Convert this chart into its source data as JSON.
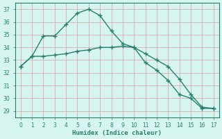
{
  "x": [
    0,
    1,
    2,
    3,
    4,
    5,
    6,
    7,
    8,
    9,
    10,
    11,
    12,
    13,
    14,
    15,
    16,
    17
  ],
  "line1": [
    32.5,
    33.3,
    34.9,
    34.9,
    35.8,
    36.7,
    37.0,
    36.5,
    35.3,
    34.3,
    34.0,
    32.8,
    32.2,
    31.4,
    30.3,
    30.0,
    29.2,
    29.2
  ],
  "line2": [
    32.5,
    33.3,
    33.3,
    33.4,
    33.5,
    33.7,
    33.8,
    34.0,
    34.0,
    34.1,
    34.0,
    33.5,
    33.0,
    32.5,
    31.5,
    30.3,
    29.3,
    29.2
  ],
  "color": "#2a7d6e",
  "bg_color": "#d6f5f0",
  "grid_color": "#c0c0c0",
  "xlabel": "Humidex (Indice chaleur)",
  "ylabel_ticks": [
    29,
    30,
    31,
    32,
    33,
    34,
    35,
    36,
    37
  ],
  "xlim": [
    -0.5,
    17.5
  ],
  "ylim": [
    28.5,
    37.5
  ],
  "marker": "+",
  "markersize": 4,
  "linewidth": 1.0
}
